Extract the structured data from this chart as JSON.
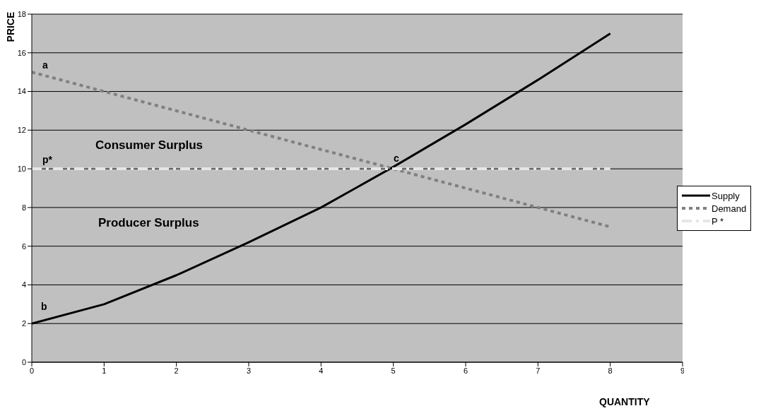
{
  "chart_data": {
    "type": "line",
    "xlabel": "QUANTITY",
    "ylabel": "PRICE",
    "x": [
      0,
      1,
      2,
      3,
      4,
      5,
      6,
      7,
      8
    ],
    "series": [
      {
        "name": "Supply",
        "color": "#000000",
        "line_style": "solid",
        "values": [
          2,
          3,
          4.5,
          6.2,
          8,
          10.1,
          12.3,
          14.6,
          17
        ]
      },
      {
        "name": "Demand",
        "color": "#808080",
        "line_style": "dotted",
        "values": [
          15,
          14,
          13,
          12,
          11,
          10,
          9,
          8,
          7
        ]
      },
      {
        "name": "P *",
        "color": "#e6e6e6",
        "line_style": "dashed",
        "values": [
          10,
          10,
          10,
          10,
          10,
          10,
          10,
          10,
          10
        ]
      }
    ],
    "xlim": [
      0,
      9
    ],
    "xticks": [
      0,
      1,
      2,
      3,
      4,
      5,
      6,
      7,
      8,
      9
    ],
    "ylim": [
      0,
      18
    ],
    "yticks": [
      0,
      2,
      4,
      6,
      8,
      10,
      12,
      14,
      16,
      18
    ],
    "grid": "y",
    "legend": "right",
    "marker": "none",
    "annotations": [
      "a",
      "b",
      "c",
      "p*",
      "Consumer Surplus",
      "Producer Surplus"
    ]
  }
}
